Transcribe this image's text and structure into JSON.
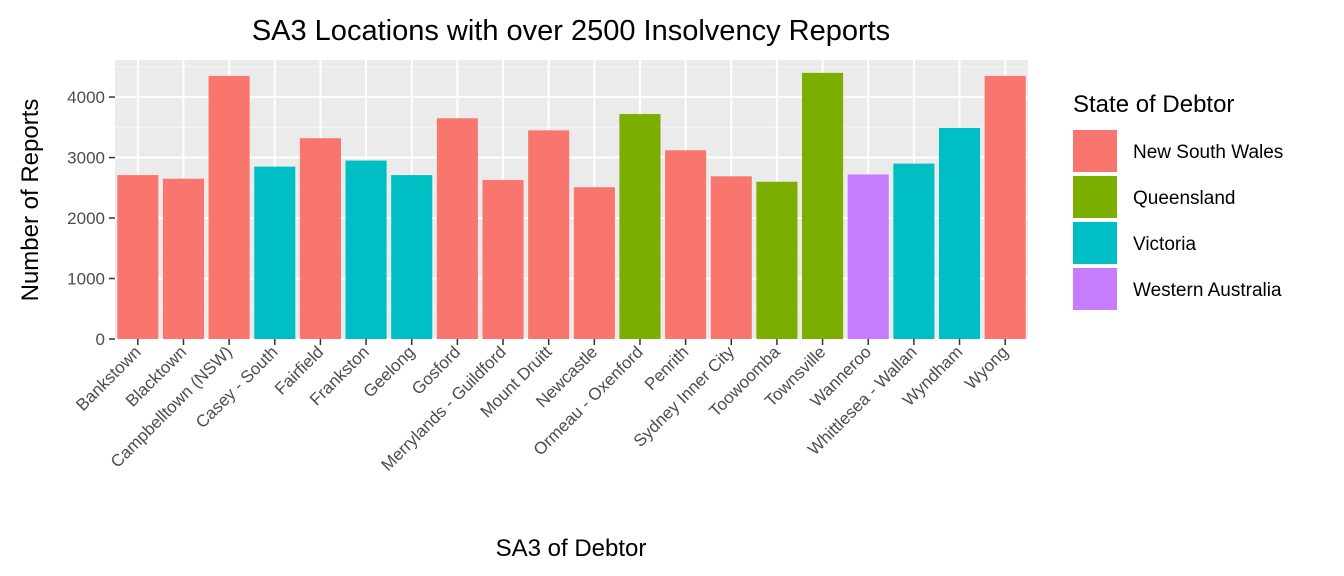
{
  "chart_data": {
    "type": "bar",
    "title": "SA3 Locations with over 2500 Insolvency Reports",
    "xlabel": "SA3 of Debtor",
    "ylabel": "Number of Reports",
    "ylim": [
      0,
      4500
    ],
    "yticks": [
      0,
      1000,
      2000,
      3000,
      4000
    ],
    "grid": true,
    "legend_position": "right",
    "legend_title": "State of Debtor",
    "legend": [
      {
        "name": "New South Wales",
        "color": "#F8766D"
      },
      {
        "name": "Queensland",
        "color": "#7CAE00"
      },
      {
        "name": "Victoria",
        "color": "#00BFC4"
      },
      {
        "name": "Western Australia",
        "color": "#C77CFF"
      }
    ],
    "categories": [
      "Bankstown",
      "Blacktown",
      "Campbelltown (NSW)",
      "Casey - South",
      "Fairfield",
      "Frankston",
      "Geelong",
      "Gosford",
      "Merrylands - Guildford",
      "Mount Druitt",
      "Newcastle",
      "Ormeau - Oxenford",
      "Penrith",
      "Sydney Inner City",
      "Toowoomba",
      "Townsville",
      "Wanneroo",
      "Whittlesea - Wallan",
      "Wyndham",
      "Wyong"
    ],
    "values": [
      2710,
      2650,
      4350,
      2850,
      3320,
      2950,
      2710,
      3650,
      2630,
      3450,
      2510,
      3720,
      3120,
      2690,
      2600,
      4400,
      2720,
      2900,
      3490,
      4350
    ],
    "states": [
      "New South Wales",
      "New South Wales",
      "New South Wales",
      "Victoria",
      "New South Wales",
      "Victoria",
      "Victoria",
      "New South Wales",
      "New South Wales",
      "New South Wales",
      "New South Wales",
      "Queensland",
      "New South Wales",
      "New South Wales",
      "Queensland",
      "Queensland",
      "Western Australia",
      "Victoria",
      "Victoria",
      "New South Wales"
    ]
  },
  "colors": {
    "panel_background": "#EBEBEB",
    "grid_major": "#FFFFFF",
    "grid_minor": "#F5F5F5",
    "tick_color": "#333333"
  }
}
